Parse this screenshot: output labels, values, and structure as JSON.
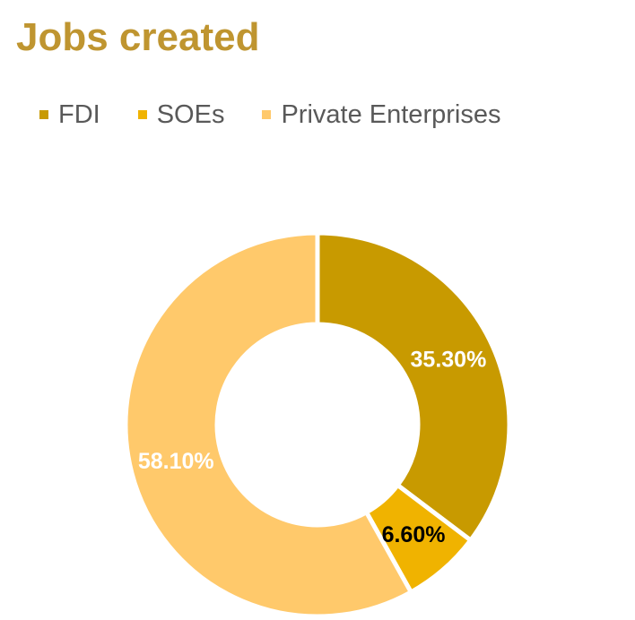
{
  "chart_data": {
    "type": "pie",
    "variant": "donut",
    "title": "Jobs created",
    "legend_position": "top-left",
    "categories": [
      "FDI",
      "SOEs",
      "Private Enterprises"
    ],
    "values": [
      35.3,
      6.6,
      58.1
    ],
    "value_labels": [
      "35.30%",
      "6.60%",
      "58.10%"
    ],
    "colors": [
      "#C89A00",
      "#F0B300",
      "#FFC96B"
    ],
    "label_colors": [
      "#FFFFFF",
      "#000000",
      "#FFFFFF"
    ],
    "title_color": "#BF9530"
  }
}
